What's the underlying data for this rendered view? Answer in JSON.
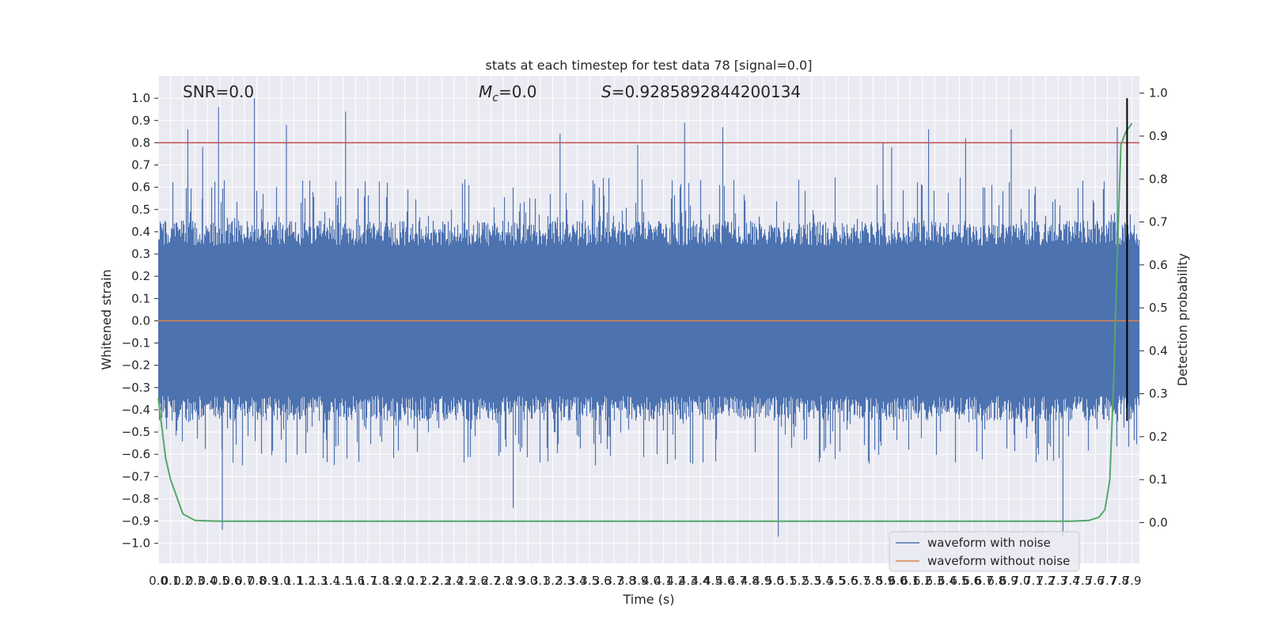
{
  "chart_data": {
    "type": "line",
    "title": "stats at each timestep for test data 78 [signal=0.0]",
    "xlabel": "Time (s)",
    "ylabel": "Whitened strain",
    "ylabel_right": "Detection probability",
    "xlim": [
      0.0,
      7.96
    ],
    "ylim": [
      -1.09,
      1.1
    ],
    "ylim_right": [
      -0.095,
      1.04
    ],
    "x_ticks": [
      0.0,
      0.1,
      0.2,
      0.3,
      0.4,
      0.5,
      0.6,
      0.7,
      0.8,
      0.9,
      1.0,
      1.1,
      1.2,
      1.3,
      1.4,
      1.5,
      1.6,
      1.7,
      1.8,
      1.9,
      2.0,
      2.1,
      2.2,
      2.3,
      2.4,
      2.5,
      2.6,
      2.7,
      2.8,
      2.9,
      3.0,
      3.1,
      3.2,
      3.3,
      3.4,
      3.5,
      3.6,
      3.7,
      3.8,
      3.9,
      4.0,
      4.1,
      4.2,
      4.3,
      4.4,
      4.5,
      4.6,
      4.7,
      4.8,
      4.9,
      5.0,
      5.1,
      5.2,
      5.3,
      5.4,
      5.5,
      5.6,
      5.7,
      5.8,
      5.9,
      6.0,
      6.1,
      6.2,
      6.3,
      6.4,
      6.5,
      6.6,
      6.7,
      6.8,
      6.9,
      7.0,
      7.1,
      7.2,
      7.3,
      7.4,
      7.5,
      7.6,
      7.7,
      7.8,
      7.9
    ],
    "x_tick_labels": [
      "0.0",
      "0.1",
      "0.2",
      "0.3",
      "0.4",
      "0.5",
      "0.6",
      "0.7",
      "0.8",
      "0.9",
      "1.0",
      "1.1",
      "1.2",
      "1.3",
      "1.4",
      "1.5",
      "1.6",
      "1.7",
      "1.8",
      "1.9",
      "2.0",
      "2.1",
      "2.2",
      "2.3",
      "2.4",
      "2.5",
      "2.6",
      "2.7",
      "2.8",
      "2.9",
      "3.0",
      "3.1",
      "3.2",
      "3.3",
      "3.4",
      "3.5",
      "3.6",
      "3.7",
      "3.8",
      "3.9",
      "4.0",
      "4.1",
      "4.2",
      "4.3",
      "4.4",
      "4.5",
      "4.6",
      "4.7",
      "4.8",
      "4.9",
      "5.0",
      "5.1",
      "5.2",
      "5.3",
      "5.4",
      "5.5",
      "5.6",
      "5.7",
      "5.8",
      "5.9",
      "6.0",
      "6.1",
      "6.2",
      "6.3",
      "6.4",
      "6.5",
      "6.6",
      "6.7",
      "6.8",
      "6.9",
      "7.0",
      "7.1",
      "7.2",
      "7.3",
      "7.4",
      "7.5",
      "7.6",
      "7.7",
      "7.8",
      "7.9"
    ],
    "y_ticks": [
      -1.0,
      -0.9,
      -0.8,
      -0.7,
      -0.6,
      -0.5,
      -0.4,
      -0.3,
      -0.2,
      -0.1,
      0.0,
      0.1,
      0.2,
      0.3,
      0.4,
      0.5,
      0.6,
      0.7,
      0.8,
      0.9,
      1.0
    ],
    "y_tick_labels": [
      "−1.0",
      "−0.9",
      "−0.8",
      "−0.7",
      "−0.6",
      "−0.5",
      "−0.4",
      "−0.3",
      "−0.2",
      "−0.1",
      "0.0",
      "0.1",
      "0.2",
      "0.3",
      "0.4",
      "0.5",
      "0.6",
      "0.7",
      "0.8",
      "0.9",
      "1.0"
    ],
    "y_ticks_right": [
      0.0,
      0.1,
      0.2,
      0.3,
      0.4,
      0.5,
      0.6,
      0.7,
      0.8,
      0.9,
      1.0
    ],
    "y_tick_labels_right": [
      "0.0",
      "0.1",
      "0.2",
      "0.3",
      "0.4",
      "0.5",
      "0.6",
      "0.7",
      "0.8",
      "0.9",
      "1.0"
    ],
    "annotations": {
      "snr": "SNR=0.0",
      "mc_symbol": "M",
      "mc_subscript": "c",
      "mc_value": "=0.0",
      "s_symbol": "S",
      "s_value": "=0.9285892844200134"
    },
    "threshold_y": 0.8,
    "vertical_marker_x": 7.86,
    "vertical_marker_y": [
      -0.45,
      1.0
    ],
    "series": [
      {
        "name": "waveform with noise",
        "color": "#4c72b0",
        "kind": "noise-trace",
        "amplitude_envelope": {
          "typical": [
            -0.45,
            0.45
          ],
          "spike_max": [
            -0.97,
            1.0
          ]
        },
        "spikes": [
          {
            "x": 0.24,
            "y": 0.86
          },
          {
            "x": 0.36,
            "y": 0.78
          },
          {
            "x": 0.49,
            "y": 0.96
          },
          {
            "x": 0.52,
            "y": -0.94
          },
          {
            "x": 0.78,
            "y": 1.0
          },
          {
            "x": 1.04,
            "y": 0.88
          },
          {
            "x": 1.52,
            "y": 0.94
          },
          {
            "x": 2.88,
            "y": -0.84
          },
          {
            "x": 3.26,
            "y": 0.84
          },
          {
            "x": 3.89,
            "y": 0.79
          },
          {
            "x": 4.27,
            "y": 0.89
          },
          {
            "x": 4.58,
            "y": 0.87
          },
          {
            "x": 5.03,
            "y": -0.97
          },
          {
            "x": 5.88,
            "y": 0.8
          },
          {
            "x": 5.95,
            "y": 0.78
          },
          {
            "x": 6.25,
            "y": 0.86
          },
          {
            "x": 6.55,
            "y": 0.82
          },
          {
            "x": 6.92,
            "y": 0.86
          },
          {
            "x": 7.34,
            "y": -0.97
          },
          {
            "x": 7.78,
            "y": 0.87
          }
        ]
      },
      {
        "name": "waveform without noise",
        "color": "#dd8452",
        "x": [
          0.0,
          7.96
        ],
        "y": [
          0.0,
          0.0
        ]
      },
      {
        "color": "#55a868",
        "axis": "right",
        "x": [
          0.0,
          0.03,
          0.06,
          0.1,
          0.15,
          0.2,
          0.3,
          0.5,
          1.0,
          2.0,
          3.0,
          4.0,
          5.0,
          6.0,
          7.0,
          7.4,
          7.55,
          7.63,
          7.68,
          7.72,
          7.75,
          7.78,
          7.81,
          7.85,
          7.9
        ],
        "y": [
          0.29,
          0.22,
          0.15,
          0.1,
          0.06,
          0.02,
          0.005,
          0.003,
          0.003,
          0.003,
          0.003,
          0.003,
          0.003,
          0.003,
          0.003,
          0.003,
          0.005,
          0.012,
          0.03,
          0.1,
          0.32,
          0.62,
          0.88,
          0.91,
          0.93
        ]
      }
    ],
    "legend": {
      "placement": "lower-right",
      "entries": [
        "waveform with noise",
        "waveform without noise"
      ]
    },
    "grid": true
  }
}
